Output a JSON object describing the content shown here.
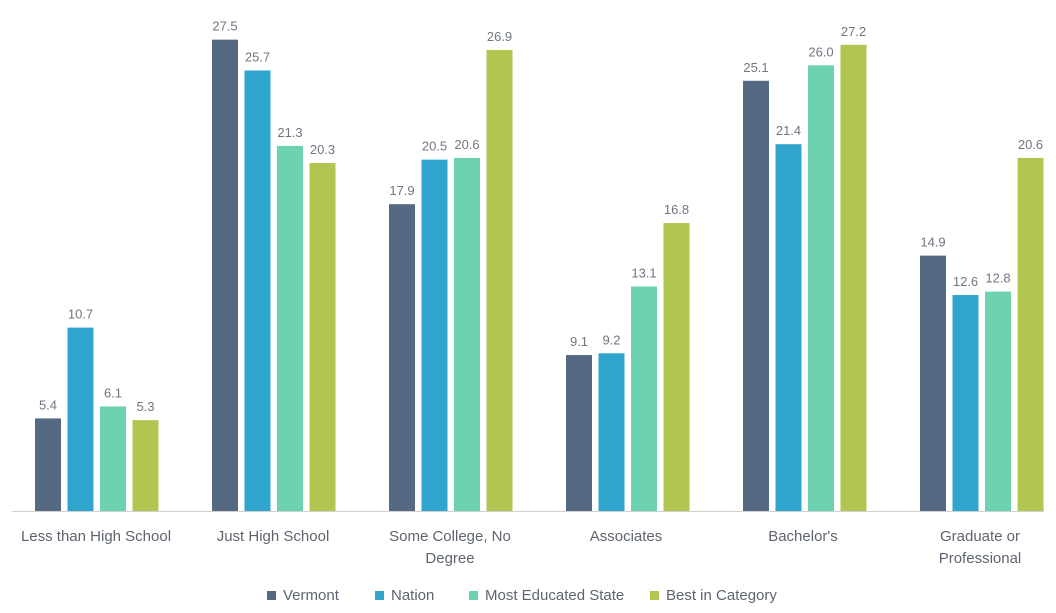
{
  "chart_data": {
    "type": "bar",
    "categories": [
      [
        "Less than High School"
      ],
      [
        "Just High School"
      ],
      [
        "Some College, No",
        "Degree"
      ],
      [
        "Associates"
      ],
      [
        "Bachelor's"
      ],
      [
        "Graduate or",
        "Professional"
      ]
    ],
    "series": [
      {
        "name": "Vermont",
        "color": "#566983",
        "values": [
          5.4,
          27.5,
          17.9,
          9.1,
          25.1,
          14.9
        ]
      },
      {
        "name": "Nation",
        "color": "#2fa4cc",
        "values": [
          10.7,
          25.7,
          20.5,
          9.2,
          21.4,
          12.6
        ]
      },
      {
        "name": "Most Educated State",
        "color": "#6dd2b0",
        "values": [
          6.1,
          21.3,
          20.6,
          13.1,
          26.0,
          12.8
        ]
      },
      {
        "name": "Best in Category",
        "color": "#b1c650",
        "values": [
          5.3,
          20.3,
          26.9,
          16.8,
          27.2,
          20.6
        ]
      }
    ],
    "value_labels": [
      [
        "5.4",
        "27.5",
        "17.9",
        "9.1",
        "25.1",
        "14.9"
      ],
      [
        "10.7",
        "25.7",
        "20.5",
        "9.2",
        "21.4",
        "12.6"
      ],
      [
        "6.1",
        "21.3",
        "20.6",
        "13.1",
        "26.0",
        "12.8"
      ],
      [
        "5.3",
        "20.3",
        "26.9",
        "16.8",
        "27.2",
        "20.6"
      ]
    ],
    "ylim": [
      0,
      28
    ],
    "grid": false,
    "legend_position": "bottom",
    "axis_color": "#d0d0d0"
  }
}
